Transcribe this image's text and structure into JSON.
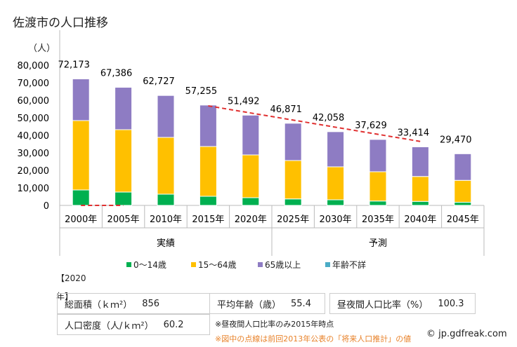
{
  "title": "佐渡市の人口推移",
  "chart_data": {
    "type": "bar",
    "stacked": true,
    "unit_label": "（人）",
    "categories": [
      "2000年",
      "2005年",
      "2010年",
      "2015年",
      "2020年",
      "2025年",
      "2030年",
      "2035年",
      "2040年",
      "2045年"
    ],
    "groups": [
      {
        "label": "実績",
        "from": 0,
        "to": 4
      },
      {
        "label": "予測",
        "from": 5,
        "to": 9
      }
    ],
    "ylim": [
      0,
      80000
    ],
    "yticks": [
      "0",
      "10,000",
      "20,000",
      "30,000",
      "40,000",
      "50,000",
      "60,000",
      "70,000",
      "80,000"
    ],
    "totals": [
      "72,173",
      "67,386",
      "62,727",
      "57,255",
      "51,492",
      "46,871",
      "42,058",
      "37,629",
      "33,414",
      "29,470"
    ],
    "series": [
      {
        "name": "0〜14歳",
        "color": "#00b050",
        "values": [
          8800,
          7600,
          6400,
          5200,
          4400,
          3700,
          3200,
          2500,
          2300,
          1800
        ]
      },
      {
        "name": "15〜64歳",
        "color": "#ffc000",
        "values": [
          39600,
          35600,
          32400,
          28400,
          24400,
          21900,
          18800,
          16700,
          14200,
          12500
        ]
      },
      {
        "name": "65歳以上",
        "color": "#8e7cc3",
        "values": [
          23773,
          24186,
          23927,
          23655,
          22692,
          21271,
          20058,
          18429,
          16914,
          15170
        ]
      },
      {
        "name": "年齢不詳",
        "color": "#4bacc6",
        "values": [
          0,
          0,
          0,
          0,
          0,
          0,
          0,
          0,
          0,
          0
        ]
      }
    ],
    "previous_estimate": {
      "color": "#e03030",
      "segments": [
        {
          "from": "2000年",
          "to": "2005年",
          "values": [
            0,
            0
          ]
        },
        {
          "from": "2015年",
          "to": "2040年",
          "values": [
            56800,
            36500
          ]
        }
      ]
    },
    "grid": false,
    "legend": "bottom"
  },
  "info": {
    "heading": "【2020年】",
    "area_label": "総面積（ｋｍ²）",
    "area_value": "856",
    "age_label": "平均年齢（歳）",
    "age_value": "55.4",
    "ratio_label": "昼夜間人口比率（%）",
    "ratio_value": "100.3",
    "density_label": "人口密度（人/ｋｍ²）",
    "density_value": "60.2",
    "note1": "※昼夜間人口比率のみ2015年時点",
    "note2": "※図中の点線は前回2013年公表の「将来人口推計」の値",
    "copyright": "© jp.gdfreak.com"
  }
}
